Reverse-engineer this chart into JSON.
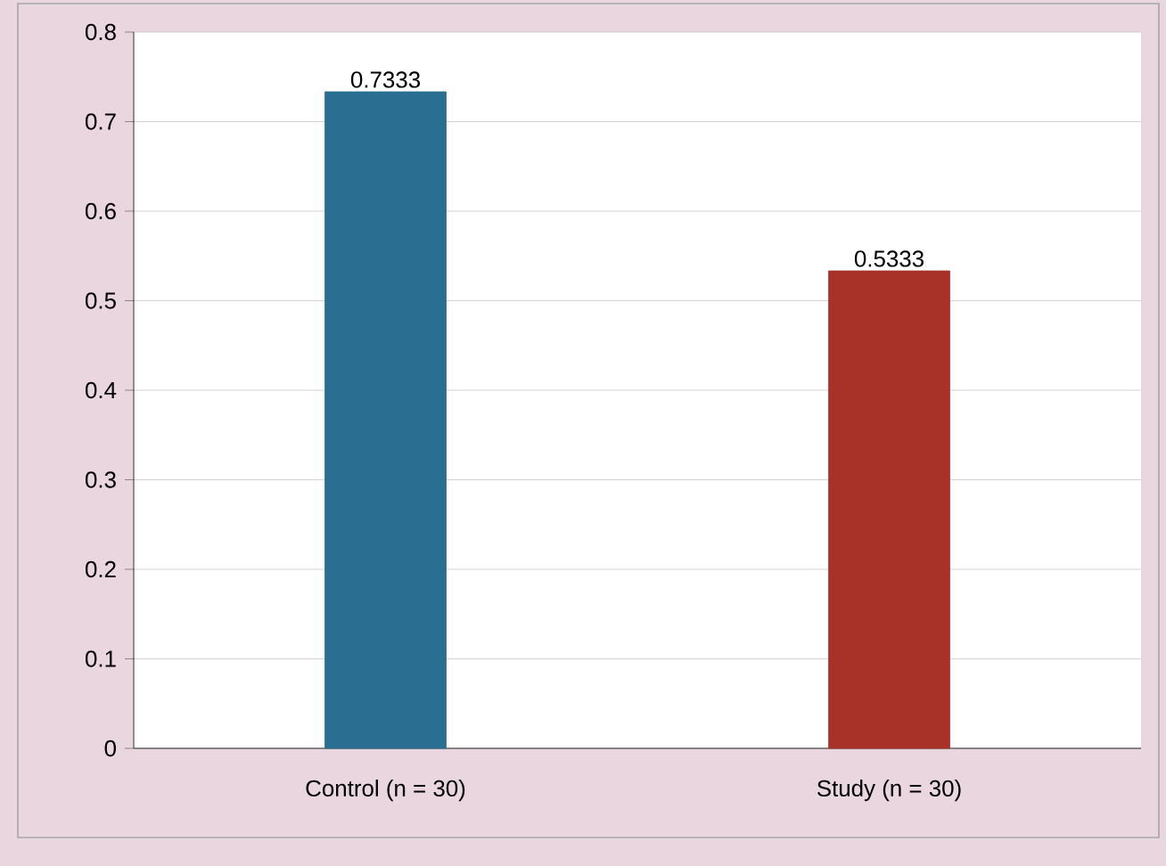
{
  "chart_data": {
    "type": "bar",
    "categories": [
      "Control (n = 30)",
      "Study (n = 30)"
    ],
    "values": [
      0.7333,
      0.5333
    ],
    "colors": [
      "#2a6f92",
      "#a83228"
    ],
    "ylim": [
      0,
      0.8
    ],
    "yticks": [
      0,
      0.1,
      0.2,
      0.3,
      0.4,
      0.5,
      0.6,
      0.7,
      0.8
    ],
    "grid": "y",
    "data_labels": true
  }
}
